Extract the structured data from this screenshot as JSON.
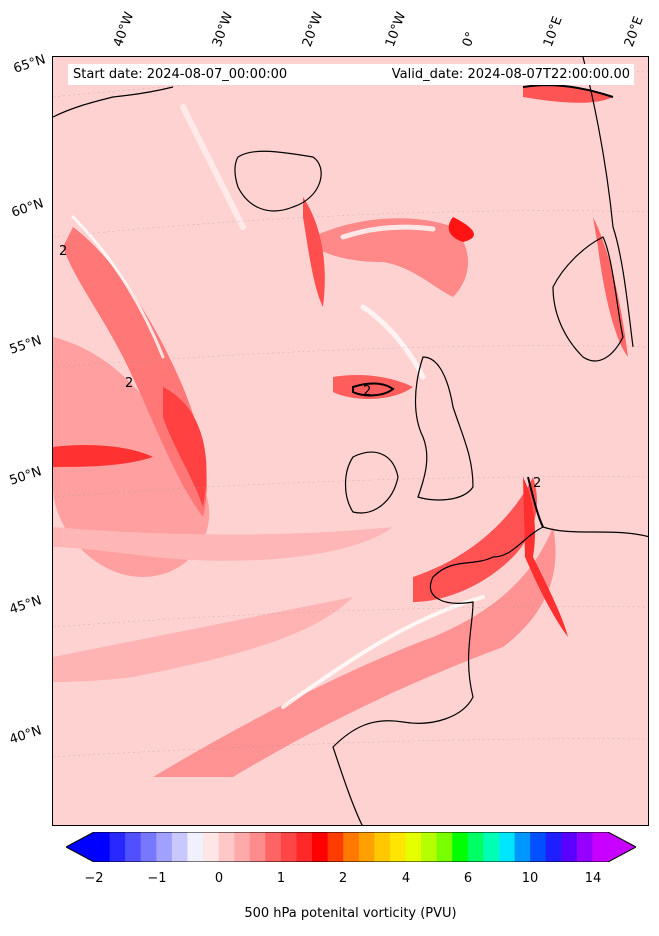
{
  "header": {
    "start_date": "Start date: 2024-08-07_00:00:00",
    "valid_date": "Valid_date: 2024-08-07T22:00:00.00"
  },
  "axes": {
    "longitude_labels": [
      "40°W",
      "30°W",
      "20°W",
      "10°W",
      "0°",
      "10°E",
      "20°E"
    ],
    "latitude_labels": [
      "65°N",
      "60°N",
      "55°N",
      "50°N",
      "45°N",
      "40°N"
    ]
  },
  "contour_labels": [
    "2",
    "2",
    "2",
    "2"
  ],
  "colorbar": {
    "title": "500 hPa potenital vorticity (PVU)",
    "tick_labels": [
      "−2",
      "−1",
      "0",
      "1",
      "2",
      "4",
      "6",
      "10",
      "14"
    ],
    "colors": [
      "#0000ff",
      "#2828ff",
      "#5050ff",
      "#7878ff",
      "#a0a0ff",
      "#c8c8ff",
      "#f0f0ff",
      "#ffe6e6",
      "#ffc8c8",
      "#ffaaaa",
      "#ff8c8c",
      "#ff6464",
      "#ff4646",
      "#ff2828",
      "#ff0000",
      "#ff3c00",
      "#ff7800",
      "#ffa000",
      "#ffc800",
      "#ffe600",
      "#e6ff00",
      "#b4ff00",
      "#78ff00",
      "#00ff00",
      "#00ff64",
      "#00ffb4",
      "#00e6ff",
      "#0096ff",
      "#0050ff",
      "#1e1eff",
      "#5a00ff",
      "#9600ff",
      "#c800ff"
    ]
  }
}
